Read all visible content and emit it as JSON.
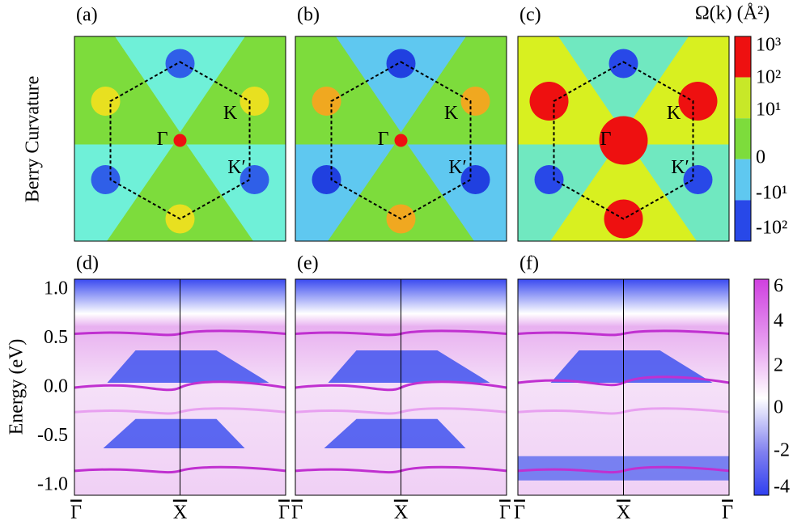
{
  "panel_labels": [
    "(a)",
    "(b)",
    "(c)",
    "(d)",
    "(e)",
    "(f)"
  ],
  "top_row": {
    "ylabel": "Berry Curvature",
    "points": [
      "Γ",
      "K",
      "K′"
    ],
    "colorbar": {
      "title": "Ω(k) (Å²)",
      "ticks": [
        "10³",
        "10²",
        "10¹",
        "0",
        "-10¹",
        "-10²"
      ]
    }
  },
  "bottom_row": {
    "ylabel": "Energy (eV)",
    "yticks": [
      "1.0",
      "0.5",
      "0.0",
      "-0.5",
      "-1.0"
    ],
    "xticks": [
      "Γ",
      "X",
      "Γ"
    ],
    "colorbar": {
      "ticks": [
        "6",
        "4",
        "2",
        "0",
        "-2",
        "-4"
      ]
    }
  }
}
